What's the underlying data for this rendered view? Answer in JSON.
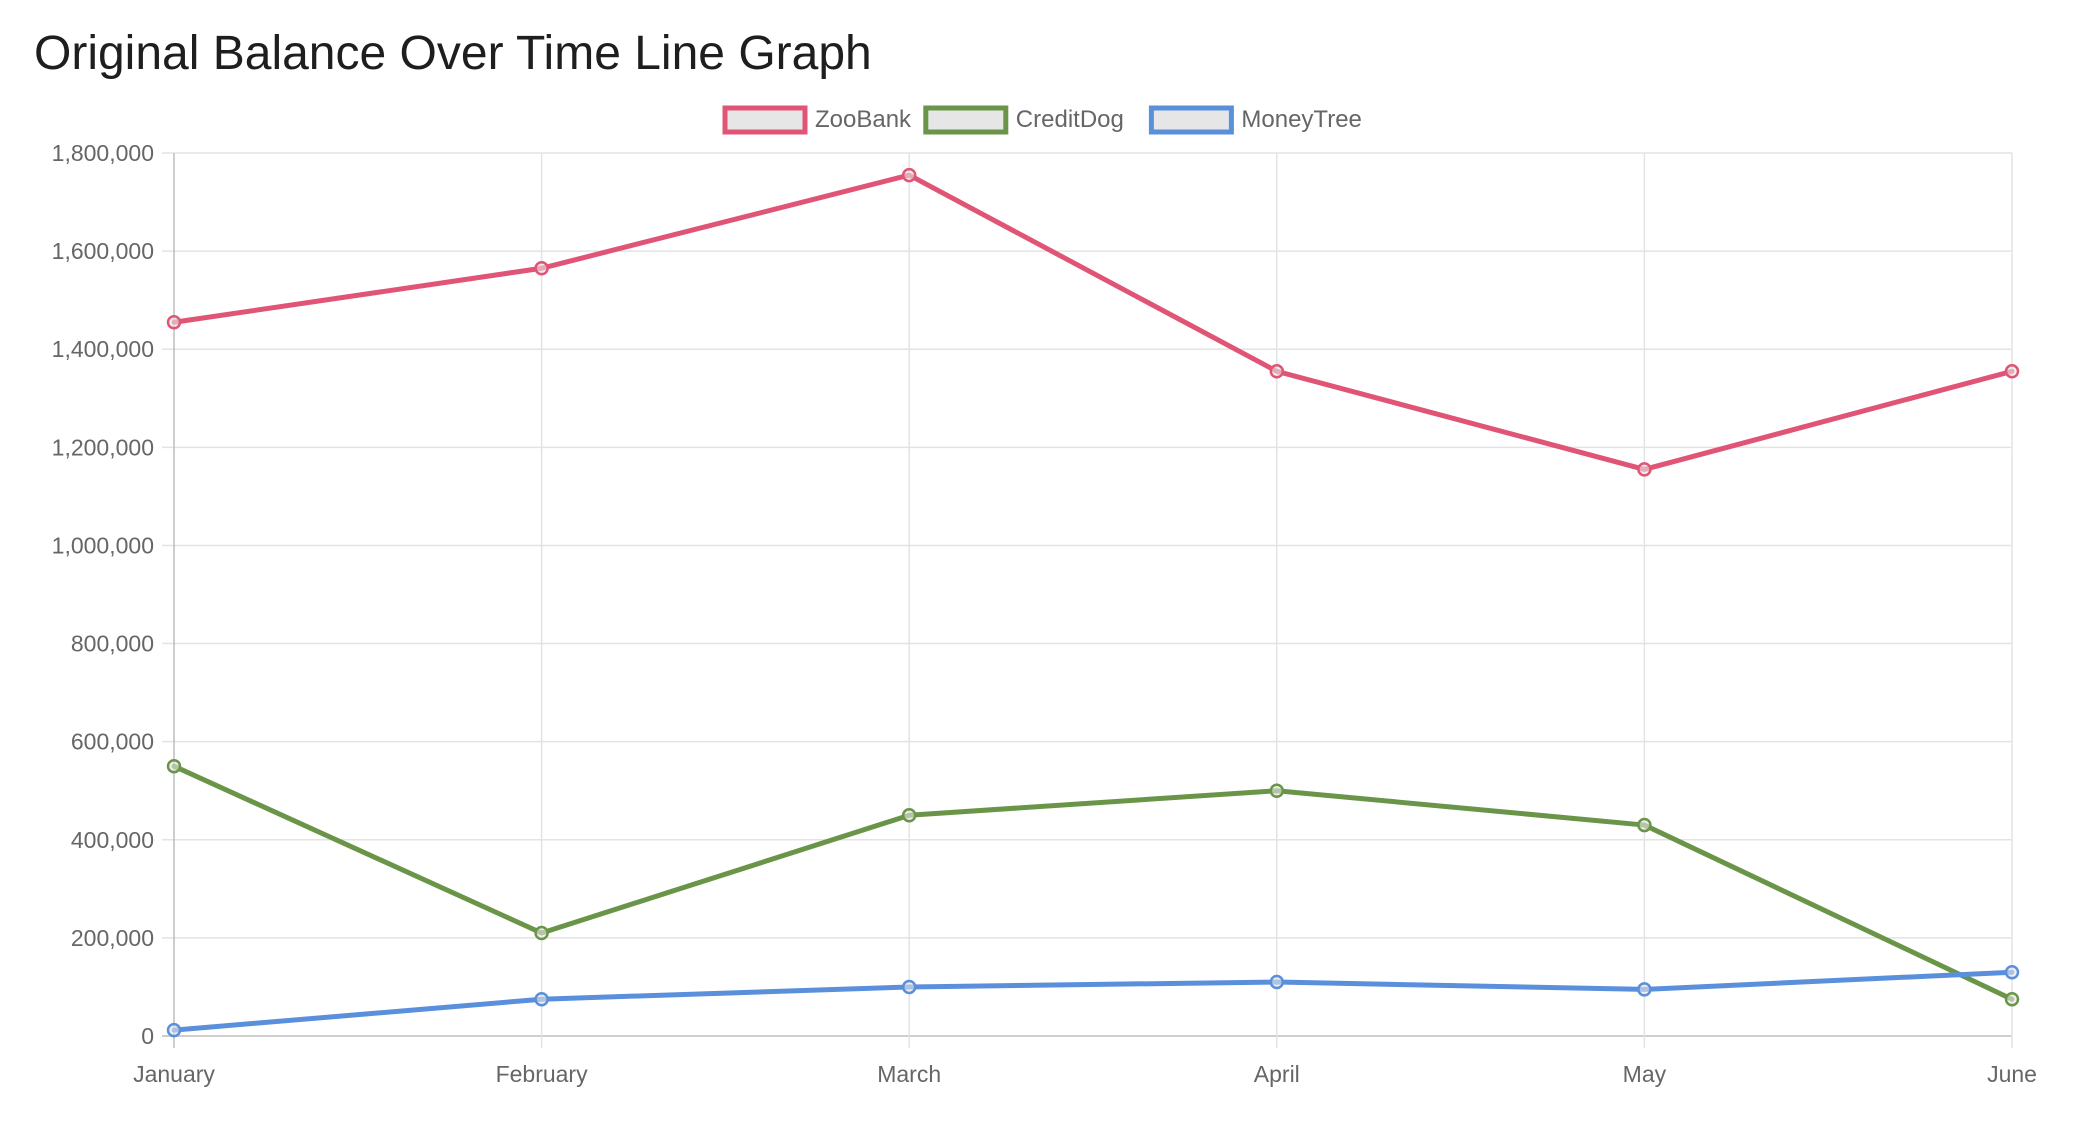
{
  "chart_data": {
    "type": "line",
    "title": "Original Balance Over Time Line Graph",
    "xlabel": "",
    "ylabel": "",
    "categories": [
      "January",
      "February",
      "March",
      "April",
      "May",
      "June"
    ],
    "ylim": [
      0,
      1800000
    ],
    "yticks": [
      0,
      200000,
      400000,
      600000,
      800000,
      1000000,
      1200000,
      1400000,
      1600000,
      1800000
    ],
    "ytick_labels": [
      "0",
      "200,000",
      "400,000",
      "600,000",
      "800,000",
      "1,000,000",
      "1,200,000",
      "1,400,000",
      "1,600,000",
      "1,800,000"
    ],
    "grid": true,
    "legend_position": "top-center",
    "series": [
      {
        "name": "ZooBank",
        "color": "#e05575",
        "values": [
          1455000,
          1565000,
          1755000,
          1355000,
          1155000,
          1355000
        ]
      },
      {
        "name": "CreditDog",
        "color": "#6a9549",
        "values": [
          550000,
          210000,
          450000,
          500000,
          430000,
          75000
        ]
      },
      {
        "name": "MoneyTree",
        "color": "#5a8fdb",
        "values": [
          12000,
          75000,
          100000,
          110000,
          95000,
          130000
        ]
      }
    ]
  }
}
